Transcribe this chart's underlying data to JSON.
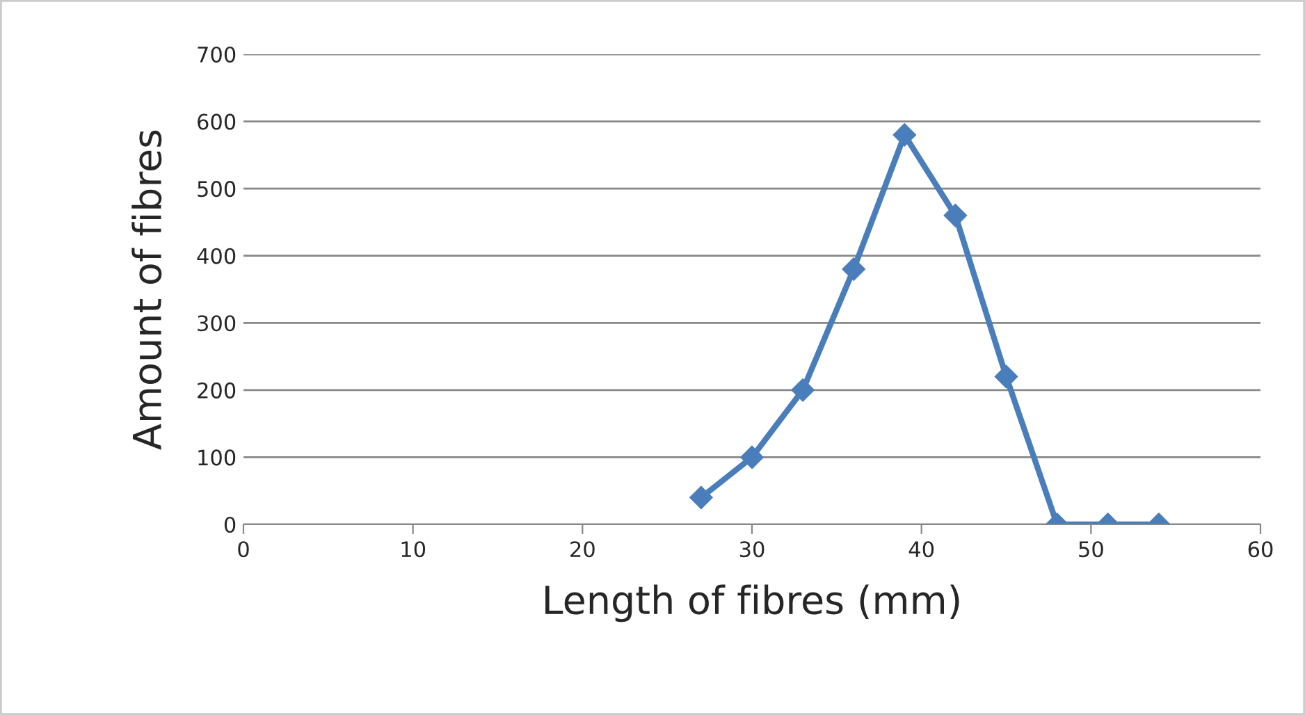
{
  "chart_data": {
    "type": "line",
    "xlabel": "Length of fibres (mm)",
    "ylabel": "Amount of fibres",
    "x": [
      27,
      30,
      33,
      36,
      39,
      42,
      45,
      48,
      51,
      54
    ],
    "series": [
      {
        "color": "#4a7ebb",
        "values": [
          40,
          100,
          200,
          380,
          580,
          460,
          220,
          0,
          0,
          0
        ]
      }
    ],
    "xlim": [
      0,
      60
    ],
    "xticks": [
      0,
      10,
      20,
      30,
      40,
      50,
      60
    ],
    "ylim": [
      0,
      700
    ],
    "yticks": [
      0,
      100,
      200,
      300,
      400,
      500,
      600,
      700
    ],
    "grid": "y",
    "legend": false,
    "marker": "diamond",
    "line_style": "solid"
  }
}
